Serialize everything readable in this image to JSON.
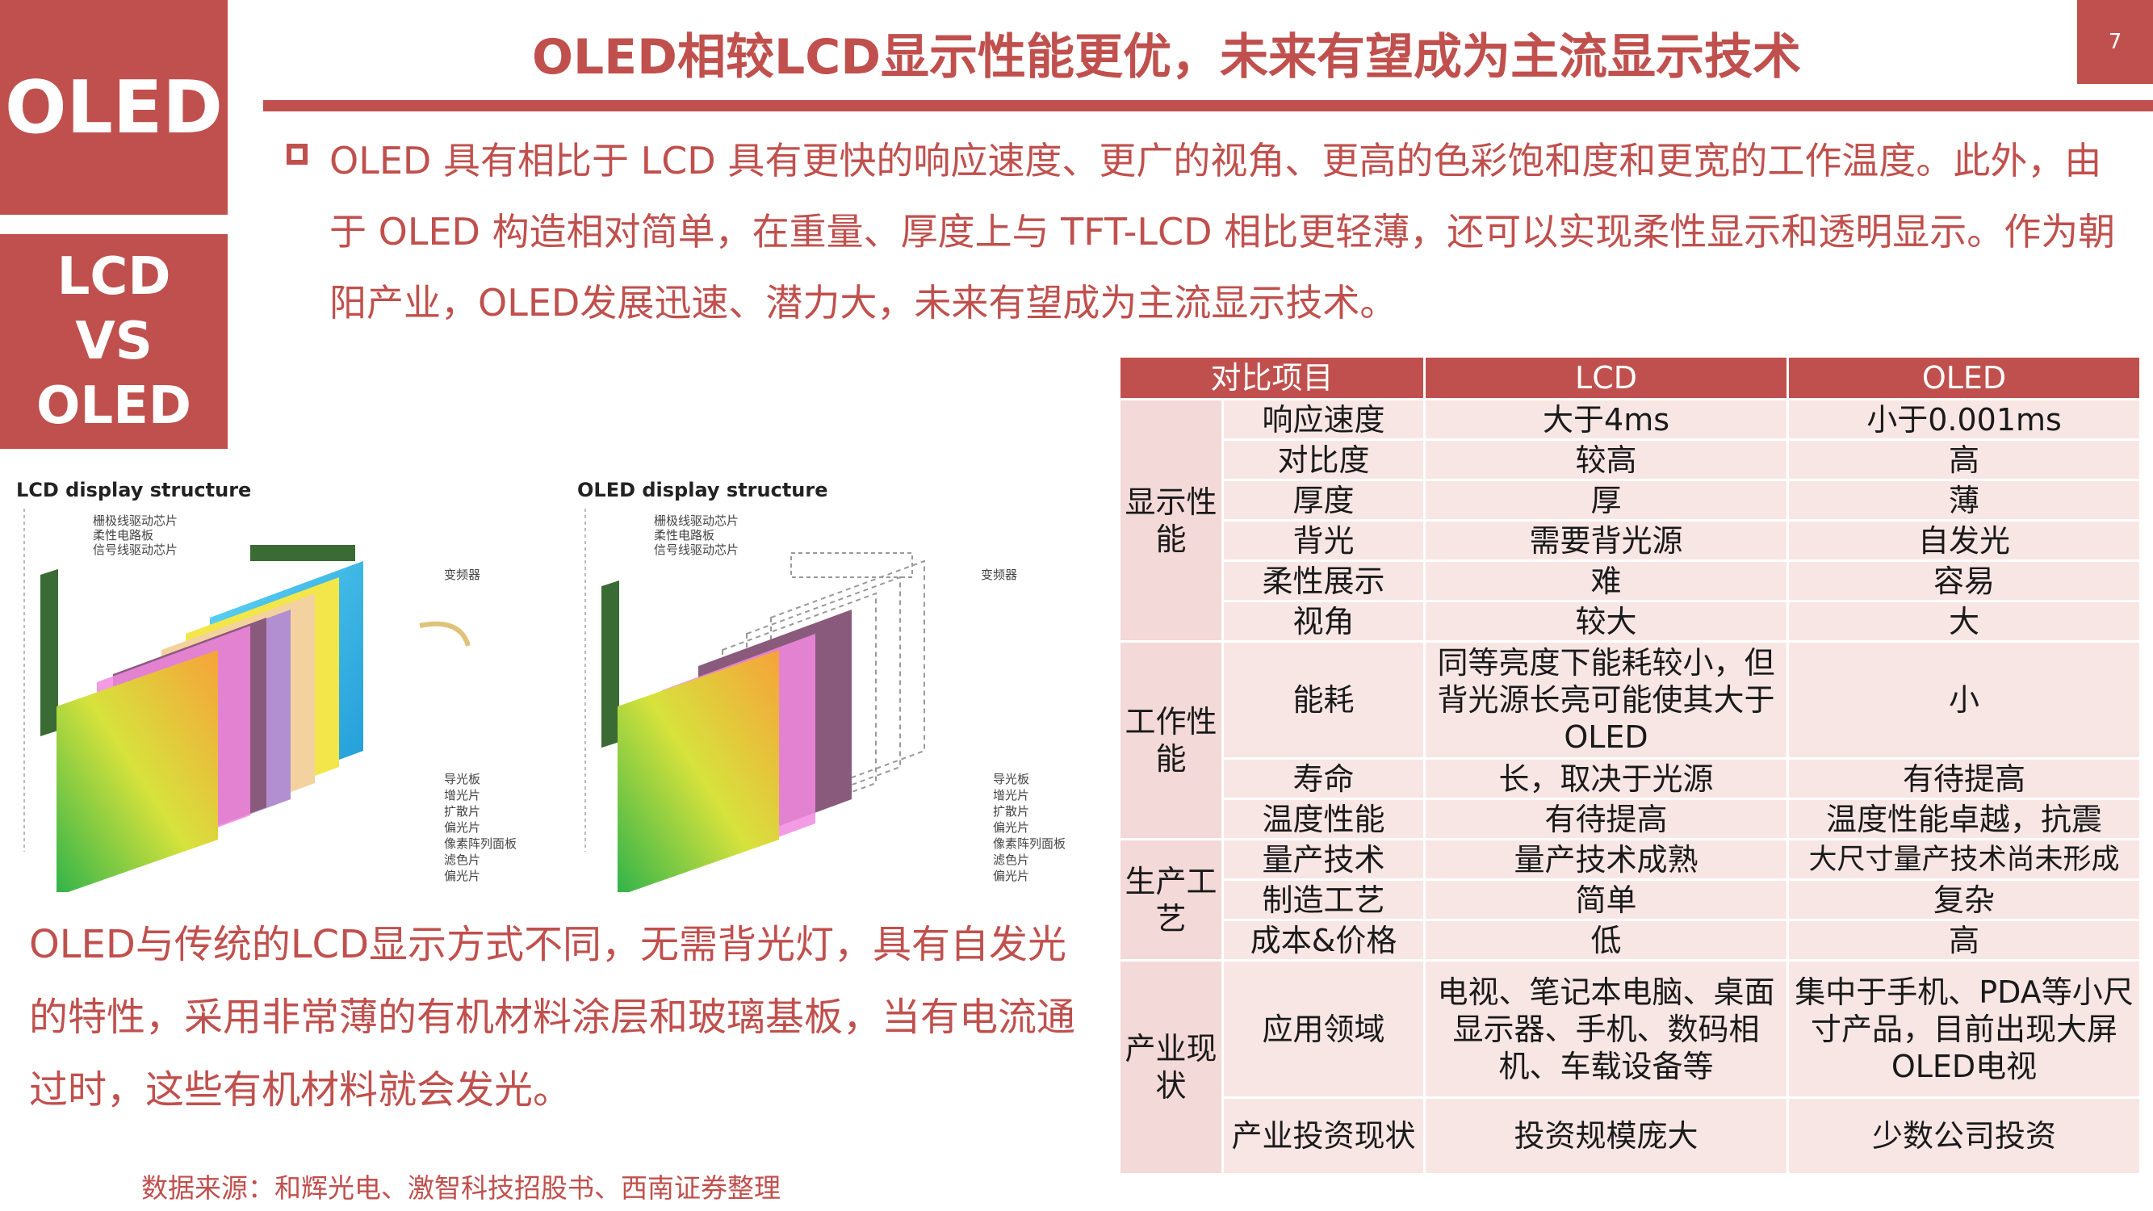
{
  "sidebar": {
    "top_label": "OLED",
    "bottom_lines": [
      "LCD",
      "VS",
      "OLED"
    ]
  },
  "header": {
    "title": "OLED相较LCD显示性能更优，未来有望成为主流显示技术",
    "page_number": "7"
  },
  "intro": {
    "text": "OLED 具有相比于 LCD 具有更快的响应速度、更广的视角、更高的色彩饱和度和更宽的工作温度。此外，由于 OLED 构造相对简单，在重量、厚度上与 TFT-LCD 相比更轻薄，还可以实现柔性显示和透明显示。作为朝阳产业，OLED发展迅速、潜力大，未来有望成为主流显示技术。"
  },
  "figures": {
    "lcd": {
      "title": "LCD display structure",
      "top_labels": [
        "栅极线驱动芯片",
        "柔性电路板",
        "信号线驱动芯片"
      ],
      "right_label": "变频器",
      "side_labels": [
        "导光板",
        "增光片",
        "扩散片",
        "偏光片",
        "像素阵列面板",
        "滤色片",
        "偏光片"
      ]
    },
    "oled": {
      "title": "OLED display structure",
      "top_labels": [
        "栅极线驱动芯片",
        "柔性电路板",
        "信号线驱动芯片"
      ],
      "right_label": "变频器",
      "side_labels": [
        "导光板",
        "增光片",
        "扩散片",
        "偏光片",
        "像素阵列面板",
        "滤色片",
        "偏光片"
      ]
    }
  },
  "description": "OLED与传统的LCD显示方式不同，无需背光灯，具有自发光的特性，采用非常薄的有机材料涂层和玻璃基板，当有电流通过时，这些有机材料就会发光。",
  "source": "数据来源：和辉光电、激智科技招股书、西南证券整理",
  "table": {
    "headers": [
      "对比项目",
      "LCD",
      "OLED"
    ],
    "groups": [
      {
        "category": "显示性能",
        "rows": [
          {
            "item": "响应速度",
            "lcd": "大于4ms",
            "oled": "小于0.001ms"
          },
          {
            "item": "对比度",
            "lcd": "较高",
            "oled": "高"
          },
          {
            "item": "厚度",
            "lcd": "厚",
            "oled": "薄"
          },
          {
            "item": "背光",
            "lcd": "需要背光源",
            "oled": "自发光"
          },
          {
            "item": "柔性展示",
            "lcd": "难",
            "oled": "容易"
          },
          {
            "item": "视角",
            "lcd": "较大",
            "oled": "大"
          }
        ]
      },
      {
        "category": "工作性能",
        "rows": [
          {
            "item": "能耗",
            "lcd": "同等亮度下能耗较小，但背光源长亮可能使其大于OLED",
            "oled": "小"
          },
          {
            "item": "寿命",
            "lcd": "长，取决于光源",
            "oled": "有待提高"
          },
          {
            "item": "温度性能",
            "lcd": "有待提高",
            "oled": "温度性能卓越，抗震"
          }
        ]
      },
      {
        "category": "生产工艺",
        "rows": [
          {
            "item": "量产技术",
            "lcd": "量产技术成熟",
            "oled": "大尺寸量产技术尚未形成"
          },
          {
            "item": "制造工艺",
            "lcd": "简单",
            "oled": "复杂"
          },
          {
            "item": "成本&价格",
            "lcd": "低",
            "oled": "高"
          }
        ]
      },
      {
        "category": "产业现状",
        "rows": [
          {
            "item": "应用领域",
            "lcd": "电视、笔记本电脑、桌面显示器、手机、数码相机、车载设备等",
            "oled": "集中于手机、PDA等小尺寸产品，目前出现大屏OLED电视"
          },
          {
            "item": "产业投资现状",
            "lcd": "投资规模庞大",
            "oled": "少数公司投资"
          }
        ]
      }
    ]
  },
  "colors": {
    "accent": "#c0504d",
    "cell_bg": "#f8e6e5"
  }
}
